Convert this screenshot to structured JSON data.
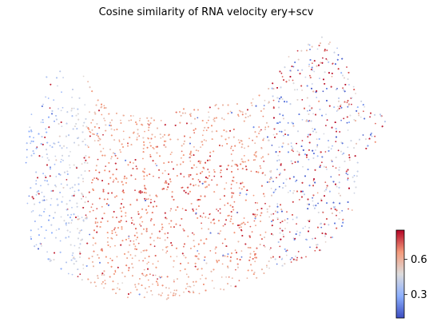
{
  "chart_data": {
    "type": "scatter",
    "title": "Cosine similarity of RNA velocity ery+scv",
    "xlabel": "",
    "ylabel": "",
    "axes_visible": false,
    "grid": false,
    "colormap": "coolwarm",
    "color_range": [
      0.1,
      0.85
    ],
    "colorbar": {
      "placement": "right-bottom",
      "ticks": [
        0.3,
        0.6
      ],
      "tick_labels": [
        "0.3",
        "0.6"
      ]
    },
    "colors": {
      "low": "#3b4cc0",
      "mid": "#dddddd",
      "high": "#b40426"
    },
    "approx_point_count": 9000
  }
}
